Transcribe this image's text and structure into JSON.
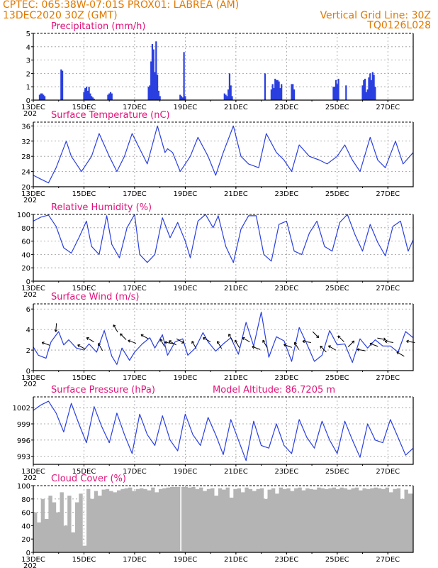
{
  "header": {
    "line1_left": "CPTEC:   065:38W-07:01S   PROX01: LABREA (AM)",
    "line2_left": "13DEC2020 30Z (GMT)",
    "line2_right": "Vertical Grid Line: 30Z",
    "line3_right": "TQ0126L028"
  },
  "colors": {
    "title": "#e0127a",
    "header": "#e07800",
    "line": "#2a3fe0",
    "bar": "#2a3fe0",
    "cloud": "#b4b4b4",
    "grid": "#999999"
  },
  "x_axis": {
    "start": "13DEC2020",
    "end": "28DEC2020",
    "tick_labels": [
      "13DEC",
      "15DEC",
      "17DEC",
      "19DEC",
      "21DEC",
      "23DEC",
      "25DEC",
      "27DEC"
    ],
    "year_fragment": "202"
  },
  "chart_data": [
    {
      "type": "bar",
      "title": "Precipitation (mm/h)",
      "ylim": [
        0,
        5
      ],
      "yticks": [
        "0",
        "1",
        "2",
        "3",
        "4",
        "5"
      ],
      "grid": true,
      "x": [
        0.25,
        0.3,
        0.35,
        0.4,
        0.45,
        1.1,
        1.15,
        2.0,
        2.05,
        2.1,
        2.15,
        2.2,
        2.25,
        2.3,
        2.35,
        2.4,
        2.95,
        3.0,
        3.05,
        3.1,
        4.55,
        4.6,
        4.65,
        4.7,
        4.75,
        4.8,
        4.85,
        4.9,
        4.95,
        5.0,
        5.8,
        5.85,
        5.9,
        5.95,
        6.0,
        7.55,
        7.6,
        7.65,
        7.7,
        7.75,
        7.8,
        7.85,
        9.15,
        9.4,
        9.45,
        9.5,
        9.55,
        9.6,
        9.65,
        9.7,
        9.75,
        9.8,
        10.2,
        10.25,
        10.3,
        11.85,
        11.9,
        11.95,
        12.0,
        12.05,
        12.35,
        13.0,
        13.05,
        13.1,
        13.15,
        13.2,
        13.25,
        13.3,
        13.35,
        13.4,
        13.45,
        13.5
      ],
      "values": [
        0.4,
        0.5,
        0.5,
        0.4,
        0.3,
        2.3,
        2.2,
        0.6,
        0.9,
        1.0,
        0.7,
        1.0,
        0.5,
        0.3,
        0.2,
        0.1,
        0.4,
        0.5,
        0.6,
        0.5,
        1.0,
        1.1,
        2.9,
        4.2,
        3.8,
        2.1,
        4.4,
        1.9,
        0.7,
        0.3,
        0.4,
        0.3,
        0.2,
        3.6,
        0.3,
        0.5,
        0.4,
        0.3,
        0.8,
        2.0,
        1.1,
        0.3,
        2.0,
        0.8,
        1.2,
        0.9,
        1.6,
        1.5,
        1.5,
        1.4,
        0.9,
        1.2,
        1.2,
        1.2,
        0.8,
        1.0,
        1.0,
        1.5,
        1.2,
        1.6,
        1.1,
        1.1,
        1.5,
        1.6,
        0.6,
        0.8,
        1.7,
        2.0,
        1.5,
        2.1,
        1.9,
        1.0
      ]
    },
    {
      "type": "line",
      "title": "Surface Temperature (nC)",
      "ylim": [
        20,
        37
      ],
      "yticks": [
        "20",
        "24",
        "28",
        "32",
        "36"
      ],
      "grid": true,
      "x": [
        0,
        0.3,
        0.6,
        0.9,
        1.3,
        1.5,
        1.9,
        2.3,
        2.6,
        3.0,
        3.3,
        3.6,
        3.9,
        4.2,
        4.5,
        4.9,
        5.2,
        5.3,
        5.5,
        5.8,
        6.2,
        6.5,
        6.9,
        7.2,
        7.5,
        7.9,
        8.2,
        8.5,
        8.9,
        9.2,
        9.6,
        9.9,
        10.2,
        10.5,
        10.9,
        11.3,
        11.6,
        12.0,
        12.3,
        12.6,
        12.9,
        13.3,
        13.6,
        13.9,
        14.3,
        14.6,
        15.0
      ],
      "values": [
        23,
        22,
        21,
        25,
        32,
        28,
        24,
        28,
        34,
        28,
        24,
        28,
        34,
        30,
        26,
        36,
        29,
        30,
        29,
        24,
        28,
        33,
        28,
        23,
        29,
        36,
        28,
        26,
        25,
        34,
        29,
        27,
        24,
        31,
        28,
        27,
        26,
        28,
        31,
        27,
        24,
        33,
        27,
        25,
        32,
        26,
        29
      ]
    },
    {
      "type": "line",
      "title": "Relative Humidity (%)",
      "ylim": [
        0,
        100
      ],
      "yticks": [
        "0",
        "20",
        "40",
        "60",
        "80",
        "100"
      ],
      "grid": true,
      "x": [
        0,
        0.3,
        0.6,
        0.9,
        1.2,
        1.5,
        1.8,
        2.1,
        2.3,
        2.6,
        2.9,
        3.1,
        3.4,
        3.7,
        4.0,
        4.2,
        4.5,
        4.8,
        5.1,
        5.4,
        5.7,
        6.0,
        6.2,
        6.5,
        6.8,
        7.1,
        7.3,
        7.6,
        7.9,
        8.2,
        8.5,
        8.8,
        9.1,
        9.4,
        9.7,
        10.0,
        10.3,
        10.6,
        10.9,
        11.2,
        11.5,
        11.8,
        12.1,
        12.4,
        12.7,
        13.0,
        13.3,
        13.6,
        13.9,
        14.2,
        14.5,
        14.8,
        15.0
      ],
      "values": [
        90,
        96,
        99,
        82,
        50,
        42,
        65,
        90,
        52,
        40,
        98,
        55,
        35,
        80,
        100,
        40,
        28,
        40,
        95,
        65,
        88,
        60,
        35,
        90,
        100,
        80,
        98,
        52,
        28,
        78,
        98,
        98,
        40,
        30,
        85,
        90,
        45,
        40,
        72,
        90,
        52,
        45,
        88,
        100,
        70,
        45,
        85,
        58,
        38,
        82,
        90,
        45,
        62
      ]
    },
    {
      "type": "line",
      "title": "Surface Wind (m/s)",
      "ylim": [
        0,
        6.5
      ],
      "yticks": [
        "0",
        "2",
        "4",
        "6"
      ],
      "grid": true,
      "x": [
        0,
        0.2,
        0.5,
        0.7,
        1.0,
        1.2,
        1.4,
        1.7,
        2.0,
        2.2,
        2.5,
        2.8,
        3.1,
        3.3,
        3.5,
        3.8,
        4.0,
        4.3,
        4.6,
        4.8,
        5.1,
        5.3,
        5.6,
        5.9,
        6.1,
        6.4,
        6.7,
        6.9,
        7.2,
        7.5,
        7.8,
        8.1,
        8.4,
        8.7,
        9.0,
        9.3,
        9.6,
        9.9,
        10.2,
        10.5,
        10.8,
        11.1,
        11.4,
        11.7,
        12.0,
        12.3,
        12.6,
        12.9,
        13.2,
        13.5,
        13.8,
        14.1,
        14.4,
        14.7,
        15.0
      ],
      "values": [
        2.3,
        1.5,
        1.2,
        2.8,
        3.8,
        2.5,
        3.0,
        2.2,
        2.0,
        2.6,
        1.8,
        3.9,
        1.4,
        0.6,
        2.2,
        1.0,
        1.8,
        2.6,
        3.2,
        2.2,
        3.5,
        1.5,
        2.8,
        3.1,
        1.5,
        2.2,
        3.7,
        2.8,
        1.9,
        2.6,
        3.2,
        1.6,
        4.7,
        2.4,
        5.7,
        1.3,
        3.3,
        2.9,
        0.9,
        4.2,
        2.6,
        0.9,
        1.5,
        3.9,
        2.5,
        2.6,
        0.8,
        3.1,
        2.2,
        3.0,
        2.4,
        2.4,
        1.8,
        3.8,
        3.2
      ]
    },
    {
      "type": "line",
      "title": "Surface Pressure (hPa)",
      "annotation": "Model Altitude: 86.7205 m",
      "ylim": [
        991.5,
        1004
      ],
      "yticks": [
        "993",
        "996",
        "999",
        "1002"
      ],
      "grid": true,
      "x": [
        0,
        0.3,
        0.6,
        0.9,
        1.2,
        1.5,
        1.8,
        2.1,
        2.4,
        2.7,
        3.0,
        3.3,
        3.6,
        3.9,
        4.2,
        4.5,
        4.8,
        5.1,
        5.4,
        5.7,
        6.0,
        6.3,
        6.6,
        6.9,
        7.2,
        7.5,
        7.8,
        8.1,
        8.4,
        8.7,
        9.0,
        9.3,
        9.6,
        9.9,
        10.2,
        10.5,
        10.8,
        11.1,
        11.4,
        11.7,
        12.0,
        12.3,
        12.6,
        12.9,
        13.2,
        13.5,
        13.8,
        14.1,
        14.4,
        14.7,
        15.0
      ],
      "values": [
        1001.5,
        1002.5,
        1003.2,
        1001.0,
        997.5,
        1002.8,
        999.0,
        995.5,
        1002.2,
        998.5,
        995.5,
        1001.0,
        997.0,
        993.5,
        1000.8,
        997.0,
        995.0,
        1000.5,
        996.0,
        994.0,
        1000.8,
        997.0,
        995.0,
        1000.2,
        997.0,
        993.3,
        999.8,
        996.0,
        992.2,
        999.5,
        995.0,
        994.5,
        999.0,
        995.0,
        993.5,
        999.8,
        996.5,
        994.5,
        999.5,
        996.0,
        993.5,
        999.5,
        996.0,
        992.8,
        999.0,
        996.0,
        995.5,
        999.8,
        996.5,
        993.2,
        994.5
      ]
    },
    {
      "type": "area",
      "title": "Cloud Cover (%)",
      "ylim": [
        0,
        100
      ],
      "yticks": [
        "0",
        "20",
        "40",
        "60",
        "80",
        "100"
      ],
      "grid": true,
      "x": [
        0,
        0.15,
        0.3,
        0.45,
        0.6,
        0.75,
        0.9,
        1.05,
        1.2,
        1.35,
        1.5,
        1.65,
        1.8,
        1.95,
        2.1,
        2.25,
        2.4,
        2.55,
        2.7,
        2.85,
        3.0,
        3.15,
        3.3,
        3.45,
        3.6,
        3.75,
        3.9,
        4.05,
        4.2,
        4.35,
        4.5,
        4.65,
        4.8,
        4.95,
        5.1,
        5.25,
        5.4,
        5.55,
        5.7,
        5.8,
        5.85,
        5.95,
        6.1,
        6.25,
        6.4,
        6.55,
        6.7,
        6.85,
        7.0,
        7.15,
        7.3,
        7.45,
        7.6,
        7.75,
        7.9,
        8.05,
        8.2,
        8.35,
        8.5,
        8.65,
        8.8,
        8.95,
        9.1,
        9.25,
        9.4,
        9.55,
        9.7,
        9.85,
        10.0,
        10.15,
        10.3,
        10.45,
        10.6,
        10.75,
        10.9,
        11.05,
        11.2,
        11.35,
        11.5,
        11.65,
        11.8,
        11.95,
        12.1,
        12.25,
        12.4,
        12.55,
        12.7,
        12.85,
        13.0,
        13.15,
        13.3,
        13.45,
        13.6,
        13.75,
        13.9,
        14.05,
        14.2,
        14.35,
        14.5,
        14.65,
        14.8,
        15.0
      ],
      "values": [
        60,
        45,
        80,
        50,
        85,
        75,
        60,
        90,
        40,
        85,
        30,
        75,
        88,
        10,
        95,
        80,
        92,
        85,
        94,
        95,
        92,
        90,
        93,
        95,
        96,
        97,
        92,
        95,
        96,
        95,
        93,
        97,
        90,
        95,
        96,
        97,
        98,
        98,
        98,
        2,
        98,
        98,
        97,
        98,
        95,
        97,
        92,
        95,
        96,
        85,
        96,
        94,
        97,
        82,
        95,
        96,
        90,
        97,
        95,
        92,
        95,
        96,
        80,
        94,
        96,
        88,
        97,
        95,
        96,
        92,
        96,
        97,
        93,
        96,
        95,
        94,
        97,
        96,
        95,
        96,
        97,
        95,
        97,
        96,
        94,
        96,
        97,
        93,
        96,
        95,
        96,
        97,
        96,
        95,
        97,
        90,
        95,
        96,
        80,
        94,
        88,
        90
      ]
    }
  ],
  "wind_arrows": {
    "x": [
      0.5,
      0.9,
      1.9,
      2.25,
      2.65,
      3.25,
      3.55,
      3.9,
      4.4,
      5.1,
      5.35,
      5.5,
      5.8,
      6.35,
      6.85,
      7.35,
      7.8,
      8.05,
      8.4,
      8.8,
      9.15,
      10.05,
      10.4,
      10.8,
      11.15,
      11.45,
      11.8,
      12.15,
      12.55,
      12.95,
      13.45,
      13.75,
      14.05,
      14.5,
      14.9
    ],
    "y": [
      2.6,
      4.2,
      2.3,
      3.0,
      2.3,
      4.1,
      3.3,
      2.8,
      3.3,
      2.7,
      2.7,
      2.7,
      2.9,
      2.5,
      3.0,
      2.5,
      3.2,
      2.6,
      3.0,
      2.2,
      2.6,
      2.4,
      2.4,
      2.8,
      3.5,
      2.1,
      2.2,
      3.1,
      2.6,
      2.0,
      2.5,
      3.1,
      2.8,
      1.6,
      2.8
    ],
    "angle_deg": [
      160,
      -95,
      150,
      150,
      120,
      120,
      135,
      160,
      150,
      120,
      170,
      150,
      -30,
      120,
      150,
      120,
      120,
      120,
      150,
      160,
      120,
      160,
      120,
      170,
      -45,
      135,
      150,
      135,
      45,
      170,
      160,
      -10,
      170,
      150,
      170
    ]
  }
}
